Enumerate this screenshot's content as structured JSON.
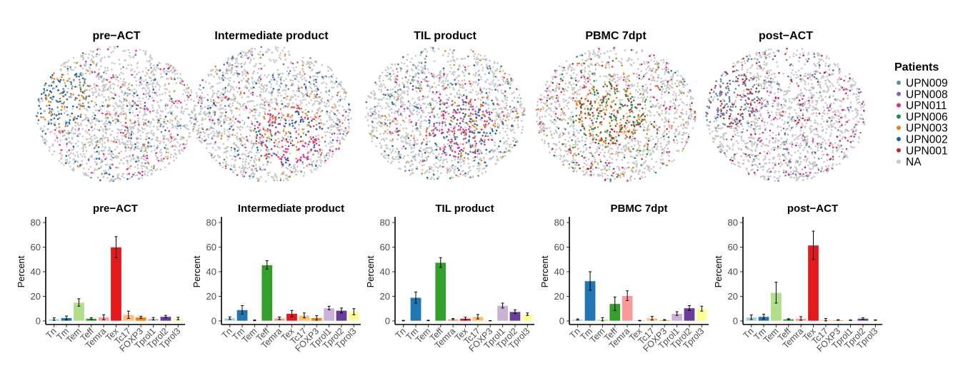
{
  "umap_panels": [
    {
      "title": "pre−ACT"
    },
    {
      "title": "Intermediate product"
    },
    {
      "title": "TIL product"
    },
    {
      "title": "PBMC 7dpt"
    },
    {
      "title": "post−ACT"
    }
  ],
  "legend": {
    "title": "Patients",
    "items": [
      {
        "label": "UPN009",
        "color": "#5f8fa3"
      },
      {
        "label": "UPN008",
        "color": "#7570b3"
      },
      {
        "label": "UPN011",
        "color": "#e7298a"
      },
      {
        "label": "UPN006",
        "color": "#1f8a4c"
      },
      {
        "label": "UPN003",
        "color": "#e6821e"
      },
      {
        "label": "UPN002",
        "color": "#1565a8"
      },
      {
        "label": "UPN001",
        "color": "#b2312a"
      },
      {
        "label": "NA",
        "color": "#c8c8c8"
      }
    ]
  },
  "chart_data": [
    {
      "type": "bar",
      "title": "pre−ACT",
      "ylabel": "Percent",
      "ylim": [
        0,
        80
      ],
      "yticks": [
        "0",
        "20",
        "40",
        "60",
        "80"
      ],
      "categories": [
        "Tn",
        "Tm",
        "Tem",
        "Teff",
        "Temra",
        "Tex",
        "Tc17",
        "FOXP3",
        "Tprol1",
        "Tprol2",
        "Tprol3"
      ],
      "values": [
        1.5,
        2.5,
        15,
        2,
        3,
        60,
        5,
        3,
        1.8,
        3.5,
        2
      ],
      "errors": [
        1,
        1.5,
        3,
        0.7,
        2,
        8.5,
        3,
        0.8,
        1,
        1,
        1
      ]
    },
    {
      "type": "bar",
      "title": "Intermediate product",
      "ylabel": "Percent",
      "ylim": [
        0,
        80
      ],
      "yticks": [
        "0",
        "20",
        "40",
        "60",
        "80"
      ],
      "categories": [
        "Tn",
        "Tm",
        "Tem",
        "Teff",
        "Temra",
        "Tex",
        "Tc17",
        "FOXP3",
        "Tprol1",
        "Tprol2",
        "Tprol3"
      ],
      "values": [
        2.3,
        9,
        0.5,
        45.5,
        2.2,
        6,
        4.5,
        2.5,
        10.5,
        8.5,
        7.5
      ],
      "errors": [
        1,
        3.5,
        0.3,
        3.5,
        1,
        2.5,
        2,
        1.8,
        1.5,
        2,
        2.5
      ]
    },
    {
      "type": "bar",
      "title": "TIL product",
      "ylabel": "Percent",
      "ylim": [
        0,
        80
      ],
      "yticks": [
        "0",
        "20",
        "40",
        "60",
        "80"
      ],
      "categories": [
        "Tn",
        "Tm",
        "Tem",
        "Teff",
        "Temra",
        "Tex",
        "Tc17",
        "FOXP3",
        "Tprol1",
        "Tprol2",
        "Tprol3"
      ],
      "values": [
        0.3,
        19,
        0.4,
        47.5,
        1.5,
        2,
        3.5,
        0.2,
        12.5,
        7.5,
        5.5
      ],
      "errors": [
        0.2,
        4.5,
        0.2,
        4,
        0.5,
        1,
        1.8,
        0.1,
        2,
        1.5,
        1
      ]
    },
    {
      "type": "bar",
      "title": "PBMC 7dpt",
      "ylabel": "Percent",
      "ylim": [
        0,
        80
      ],
      "yticks": [
        "0",
        "20",
        "40",
        "60",
        "80"
      ],
      "categories": [
        "Tn",
        "Tm",
        "Tem",
        "Teff",
        "Temra",
        "Tex",
        "Tc17",
        "FOXP3",
        "Tprol1",
        "Tprol2",
        "Tprol3"
      ],
      "values": [
        1.2,
        32.5,
        1.2,
        14,
        20.5,
        0.3,
        2.2,
        0.8,
        6,
        10.5,
        10
      ],
      "errors": [
        0.5,
        7.5,
        1.5,
        5.5,
        4,
        0.2,
        1.5,
        0.3,
        1.5,
        2,
        2
      ]
    },
    {
      "type": "bar",
      "title": "post−ACT",
      "ylabel": "Percent",
      "ylim": [
        0,
        80
      ],
      "yticks": [
        "0",
        "20",
        "40",
        "60",
        "80"
      ],
      "categories": [
        "Tn",
        "Tm",
        "Tem",
        "Teff",
        "Temra",
        "Tex",
        "Tc17",
        "FOXP3",
        "Tprol1",
        "Tprol2",
        "Tprol3"
      ],
      "values": [
        3,
        3.5,
        23,
        1.5,
        2,
        61.5,
        1,
        0.8,
        0.6,
        2,
        0.7
      ],
      "errors": [
        1.8,
        2,
        8.5,
        0.3,
        1.5,
        11.5,
        1,
        0.2,
        0.2,
        0.6,
        0.2
      ]
    }
  ],
  "bar_colors": {
    "Tn": "#a6cee3",
    "Tm": "#1f78b4",
    "Tem": "#b2df8a",
    "Teff": "#33a02c",
    "Temra": "#fb9a99",
    "Tex": "#e31a1c",
    "Tc17": "#fdbf6f",
    "FOXP3": "#ff7f00",
    "Tprol1": "#cab2d6",
    "Tprol2": "#6a3d9a",
    "Tprol3": "#ffff99"
  }
}
